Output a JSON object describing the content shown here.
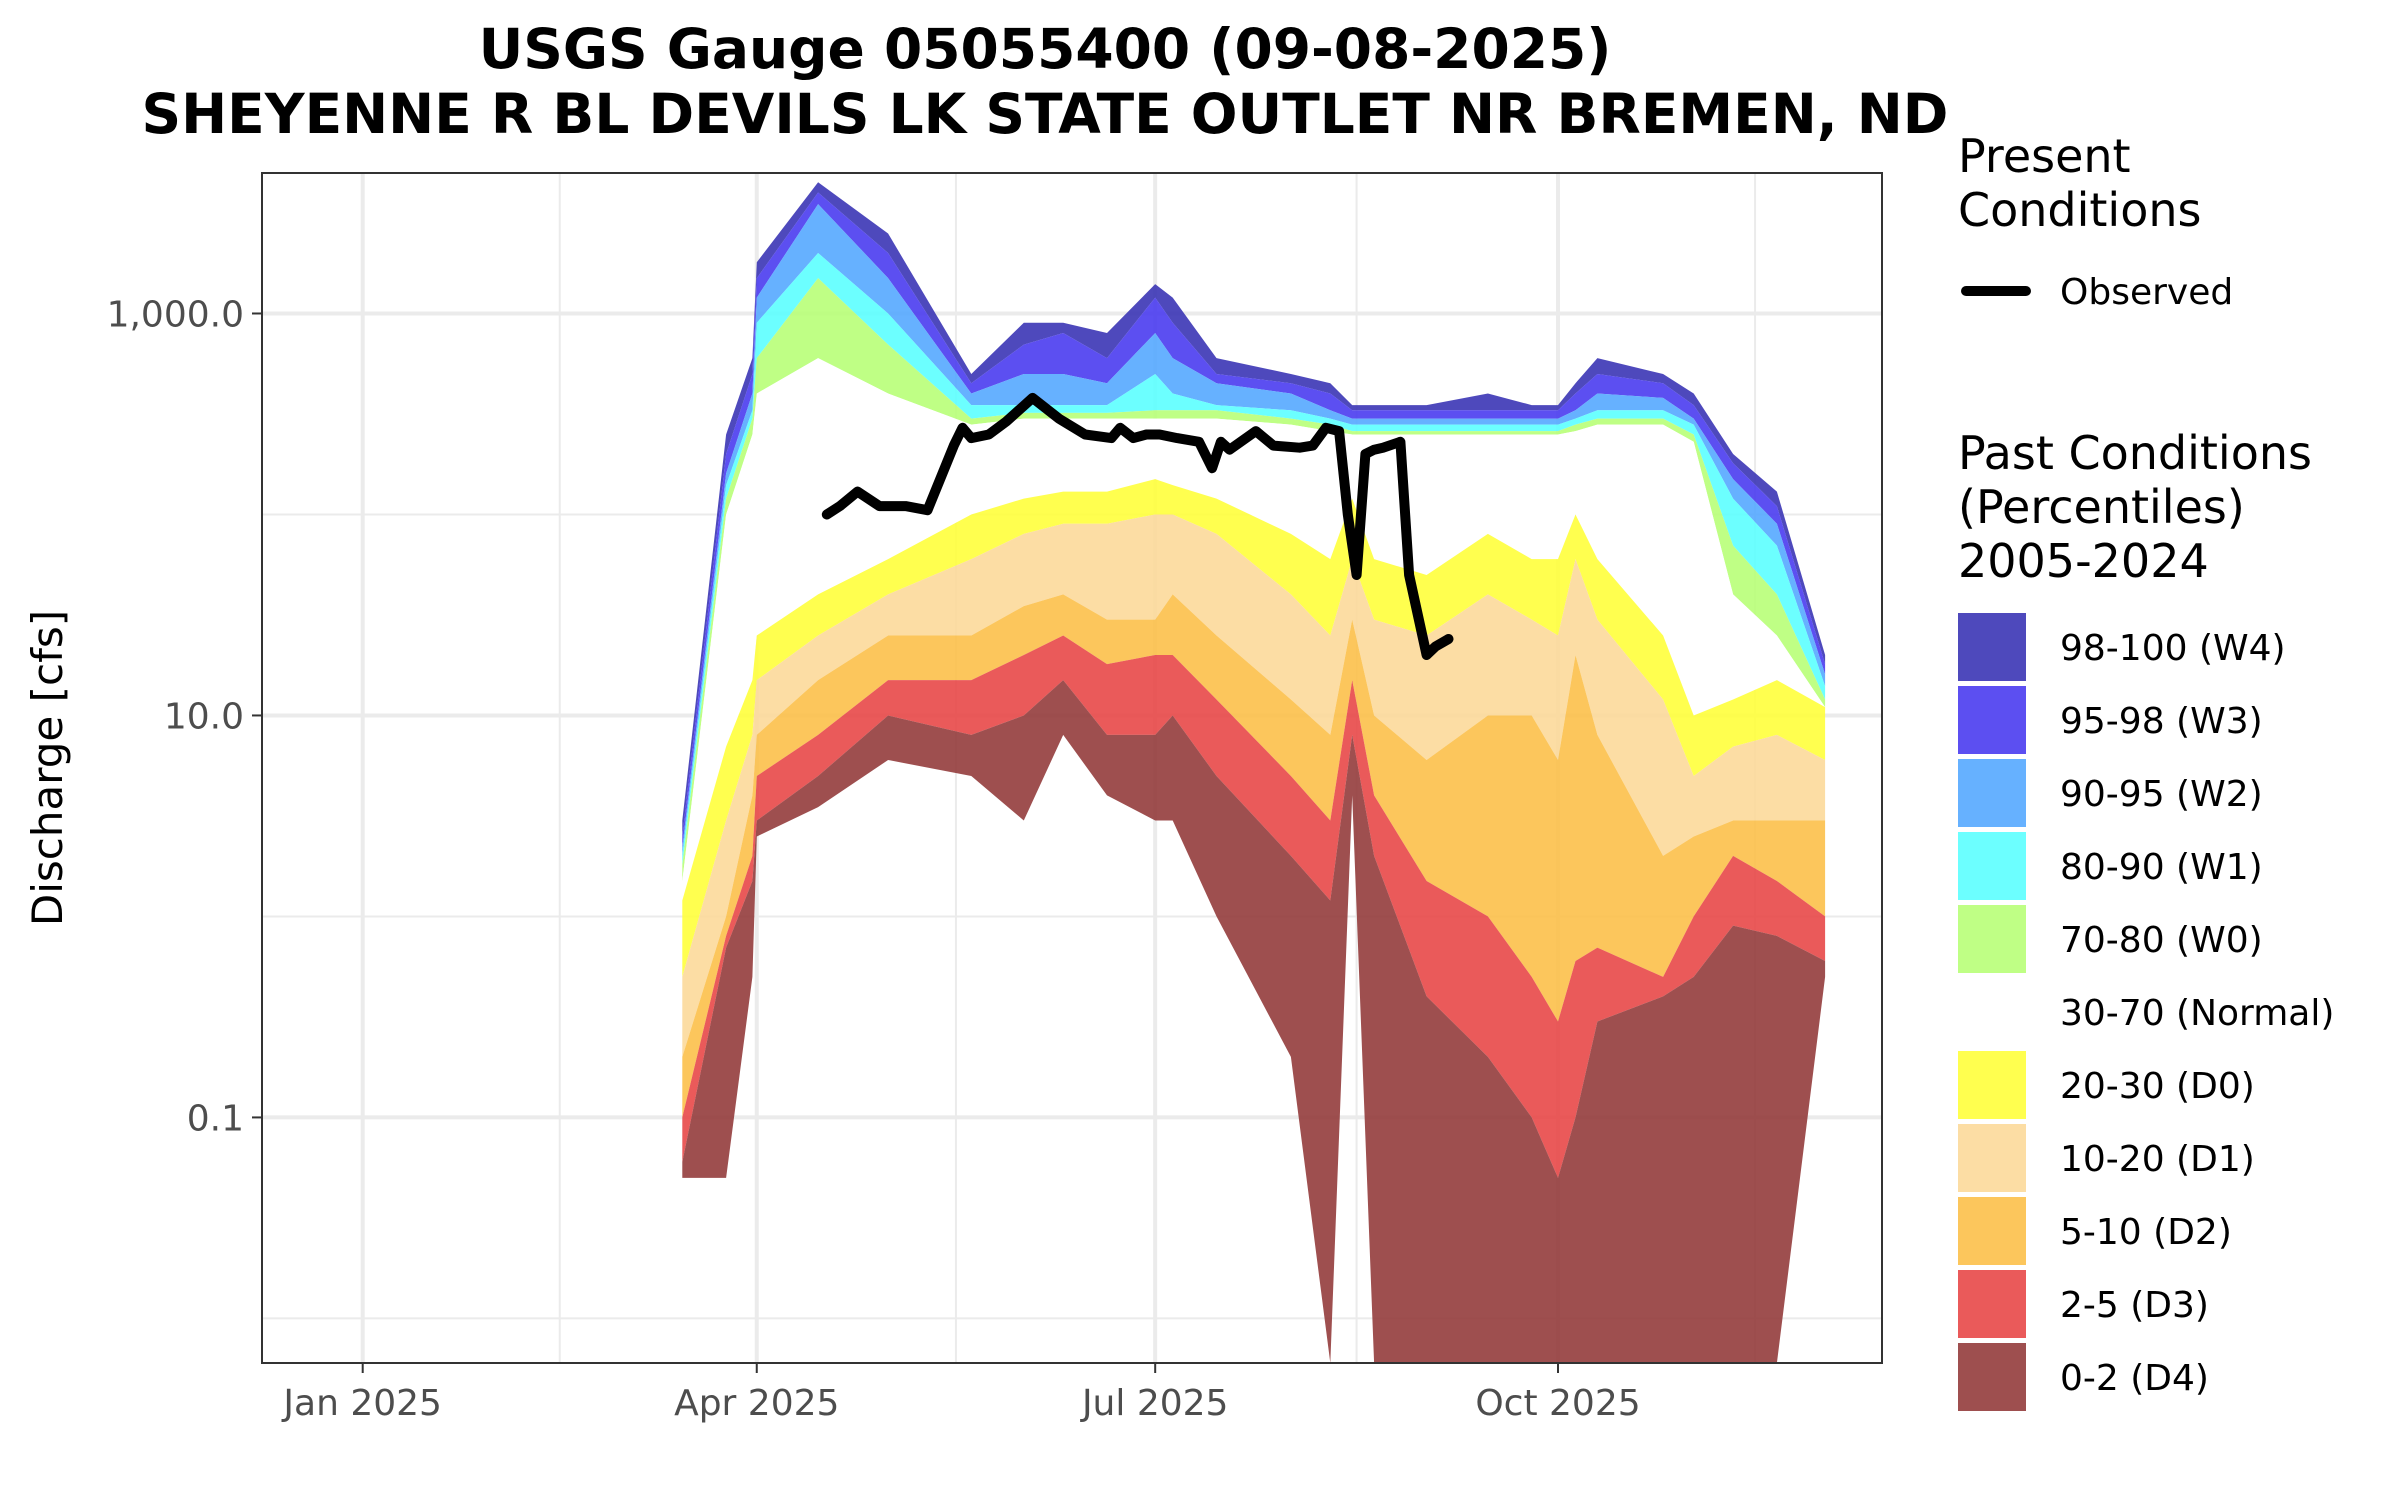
{
  "chart_data": {
    "type": "area",
    "title": "USGS Gauge 05055400 (09-08-2025)",
    "subtitle": "SHEYENNE R BL DEVILS LK STATE OUTLET NR BREMEN, ND",
    "ylabel": "Discharge [cfs]",
    "xlabel": "",
    "y_scale": "log10",
    "ylim": [
      0.006,
      5000
    ],
    "xlim": [
      "2024-12-09",
      "2025-12-14"
    ],
    "grid": true,
    "x_ticks": [
      {
        "date": "2025-01-01",
        "label": "Jan 2025"
      },
      {
        "date": "2025-04-01",
        "label": "Apr 2025"
      },
      {
        "date": "2025-07-01",
        "label": "Jul 2025"
      },
      {
        "date": "2025-10-01",
        "label": "Oct 2025"
      }
    ],
    "y_ticks": [
      {
        "value": 0.1,
        "label": "0.1"
      },
      {
        "value": 10,
        "label": "10.0"
      },
      {
        "value": 1000,
        "label": "1,000.0"
      }
    ],
    "present_legend": {
      "title_lines": [
        "Present",
        "Conditions"
      ],
      "label": "Observed",
      "color": "#000000"
    },
    "past_legend": {
      "title_lines": [
        "Past Conditions",
        "(Percentiles)",
        "2005-2024"
      ]
    },
    "percentile_bands": [
      {
        "label": "98-100 (W4)",
        "color": "#3b35b5",
        "fill": "#3b35b5"
      },
      {
        "label": "95-98 (W3)",
        "color": "#4a3cf0",
        "fill": "#4a3cf0"
      },
      {
        "label": "90-95 (W2)",
        "color": "#55a8ff",
        "fill": "#55a8ff"
      },
      {
        "label": "80-90 (W1)",
        "color": "#5cffff",
        "fill": "#5cffff"
      },
      {
        "label": "70-80 (W0)",
        "color": "#b8ff78",
        "fill": "#b8ff78"
      },
      {
        "label": "30-70 (Normal)",
        "color": "#ffffff",
        "fill": "#ffffff"
      },
      {
        "label": "20-30 (D0)",
        "color": "#ffff3c",
        "fill": "#ffff3c"
      },
      {
        "label": "10-20 (D1)",
        "color": "#fcd99a",
        "fill": "#fcd99a"
      },
      {
        "label": "5-10 (D2)",
        "color": "#fcc04a",
        "fill": "#fcc04a"
      },
      {
        "label": "2-5 (D3)",
        "color": "#e84848",
        "fill": "#e84848"
      },
      {
        "label": "0-2 (D4)",
        "color": "#943c3c",
        "fill": "#943c3c"
      }
    ],
    "percentile_boundaries": {
      "dates": [
        "2025-03-15",
        "2025-03-25",
        "2025-03-31",
        "2025-04-01",
        "2025-04-15",
        "2025-05-01",
        "2025-05-20",
        "2025-06-01",
        "2025-06-10",
        "2025-06-20",
        "2025-07-01",
        "2025-07-05",
        "2025-07-15",
        "2025-08-01",
        "2025-08-10",
        "2025-08-15",
        "2025-08-20",
        "2025-09-01",
        "2025-09-15",
        "2025-09-25",
        "2025-10-01",
        "2025-10-05",
        "2025-10-10",
        "2025-10-25",
        "2025-11-01",
        "2025-11-10",
        "2025-11-20",
        "2025-12-01"
      ],
      "p100": [
        3,
        250,
        600,
        1800,
        4500,
        2500,
        500,
        900,
        900,
        800,
        1400,
        1200,
        600,
        500,
        450,
        350,
        350,
        350,
        400,
        350,
        350,
        450,
        600,
        500,
        400,
        200,
        130,
        20
      ],
      "p98": [
        2.5,
        200,
        500,
        1500,
        4000,
        2000,
        450,
        700,
        800,
        600,
        1200,
        900,
        500,
        450,
        400,
        330,
        330,
        330,
        330,
        330,
        330,
        400,
        500,
        450,
        350,
        180,
        110,
        18
      ],
      "p95": [
        2.2,
        160,
        400,
        1200,
        3500,
        1500,
        400,
        500,
        500,
        450,
        800,
        600,
        450,
        400,
        330,
        300,
        300,
        300,
        300,
        300,
        300,
        330,
        400,
        380,
        300,
        150,
        90,
        16
      ],
      "p90": [
        2,
        140,
        330,
        900,
        2000,
        1000,
        350,
        350,
        350,
        350,
        500,
        400,
        350,
        330,
        300,
        280,
        280,
        280,
        280,
        280,
        280,
        300,
        330,
        330,
        280,
        120,
        70,
        14
      ],
      "p80": [
        1.8,
        120,
        300,
        600,
        1500,
        700,
        300,
        320,
        320,
        320,
        330,
        330,
        330,
        300,
        280,
        260,
        260,
        260,
        260,
        260,
        260,
        280,
        300,
        300,
        250,
        70,
        40,
        12
      ],
      "p70": [
        1.5,
        100,
        250,
        400,
        600,
        400,
        280,
        300,
        300,
        300,
        300,
        300,
        300,
        280,
        260,
        250,
        250,
        250,
        250,
        250,
        250,
        260,
        280,
        280,
        230,
        40,
        25,
        11
      ],
      "p30": [
        1.2,
        7,
        15,
        25,
        40,
        60,
        100,
        120,
        130,
        130,
        150,
        140,
        120,
        80,
        60,
        120,
        60,
        50,
        80,
        60,
        60,
        100,
        60,
        25,
        10,
        12,
        15,
        11
      ],
      "p20": [
        0.5,
        3,
        8,
        15,
        25,
        40,
        60,
        80,
        90,
        90,
        100,
        100,
        80,
        40,
        25,
        60,
        30,
        25,
        40,
        30,
        25,
        60,
        30,
        12,
        5,
        7,
        8,
        6
      ],
      "p10": [
        0.2,
        1,
        4,
        8,
        15,
        25,
        25,
        35,
        40,
        30,
        30,
        40,
        25,
        12,
        8,
        30,
        10,
        6,
        10,
        10,
        6,
        20,
        8,
        2,
        2.5,
        3,
        3,
        3
      ],
      "p5": [
        0.1,
        0.8,
        2,
        5,
        8,
        15,
        15,
        20,
        25,
        18,
        20,
        20,
        12,
        5,
        3,
        15,
        4,
        1.5,
        1,
        0.5,
        0.3,
        0.6,
        0.7,
        0.5,
        1,
        2,
        1.5,
        1
      ],
      "p2": [
        0.06,
        0.7,
        1.5,
        3,
        5,
        10,
        8,
        10,
        15,
        8,
        8,
        10,
        5,
        2,
        1.2,
        8,
        2,
        0.4,
        0.2,
        0.1,
        0.05,
        0.1,
        0.3,
        0.4,
        0.5,
        0.9,
        0.8,
        0.6
      ],
      "p0": [
        0.05,
        0.05,
        0.5,
        2.5,
        3.5,
        6,
        5,
        3,
        8,
        4,
        3,
        3,
        1,
        0.2,
        0.006,
        4,
        0.006,
        0.006,
        0.006,
        0.006,
        0.006,
        0.006,
        0.006,
        0.006,
        0.006,
        0.006,
        0.006,
        0.5
      ]
    },
    "series": [
      {
        "name": "Observed",
        "color": "#000000",
        "x": [
          "2025-04-17",
          "2025-04-20",
          "2025-04-24",
          "2025-04-29",
          "2025-05-05",
          "2025-05-10",
          "2025-05-16",
          "2025-05-18",
          "2025-05-20",
          "2025-05-24",
          "2025-05-28",
          "2025-06-03",
          "2025-06-09",
          "2025-06-15",
          "2025-06-21",
          "2025-06-23",
          "2025-06-26",
          "2025-06-29",
          "2025-07-02",
          "2025-07-06",
          "2025-07-11",
          "2025-07-14",
          "2025-07-16",
          "2025-07-18",
          "2025-07-24",
          "2025-07-28",
          "2025-08-03",
          "2025-08-06",
          "2025-08-09",
          "2025-08-12",
          "2025-08-14",
          "2025-08-16",
          "2025-08-18",
          "2025-08-20",
          "2025-08-22",
          "2025-08-26",
          "2025-08-28",
          "2025-09-01",
          "2025-09-03",
          "2025-09-06"
        ],
        "y": [
          100,
          110,
          130,
          110,
          110,
          105,
          220,
          270,
          240,
          250,
          290,
          380,
          300,
          250,
          240,
          270,
          240,
          250,
          250,
          240,
          230,
          170,
          230,
          210,
          260,
          220,
          215,
          220,
          270,
          260,
          100,
          50,
          200,
          210,
          215,
          230,
          50,
          20,
          22,
          24
        ]
      }
    ]
  }
}
